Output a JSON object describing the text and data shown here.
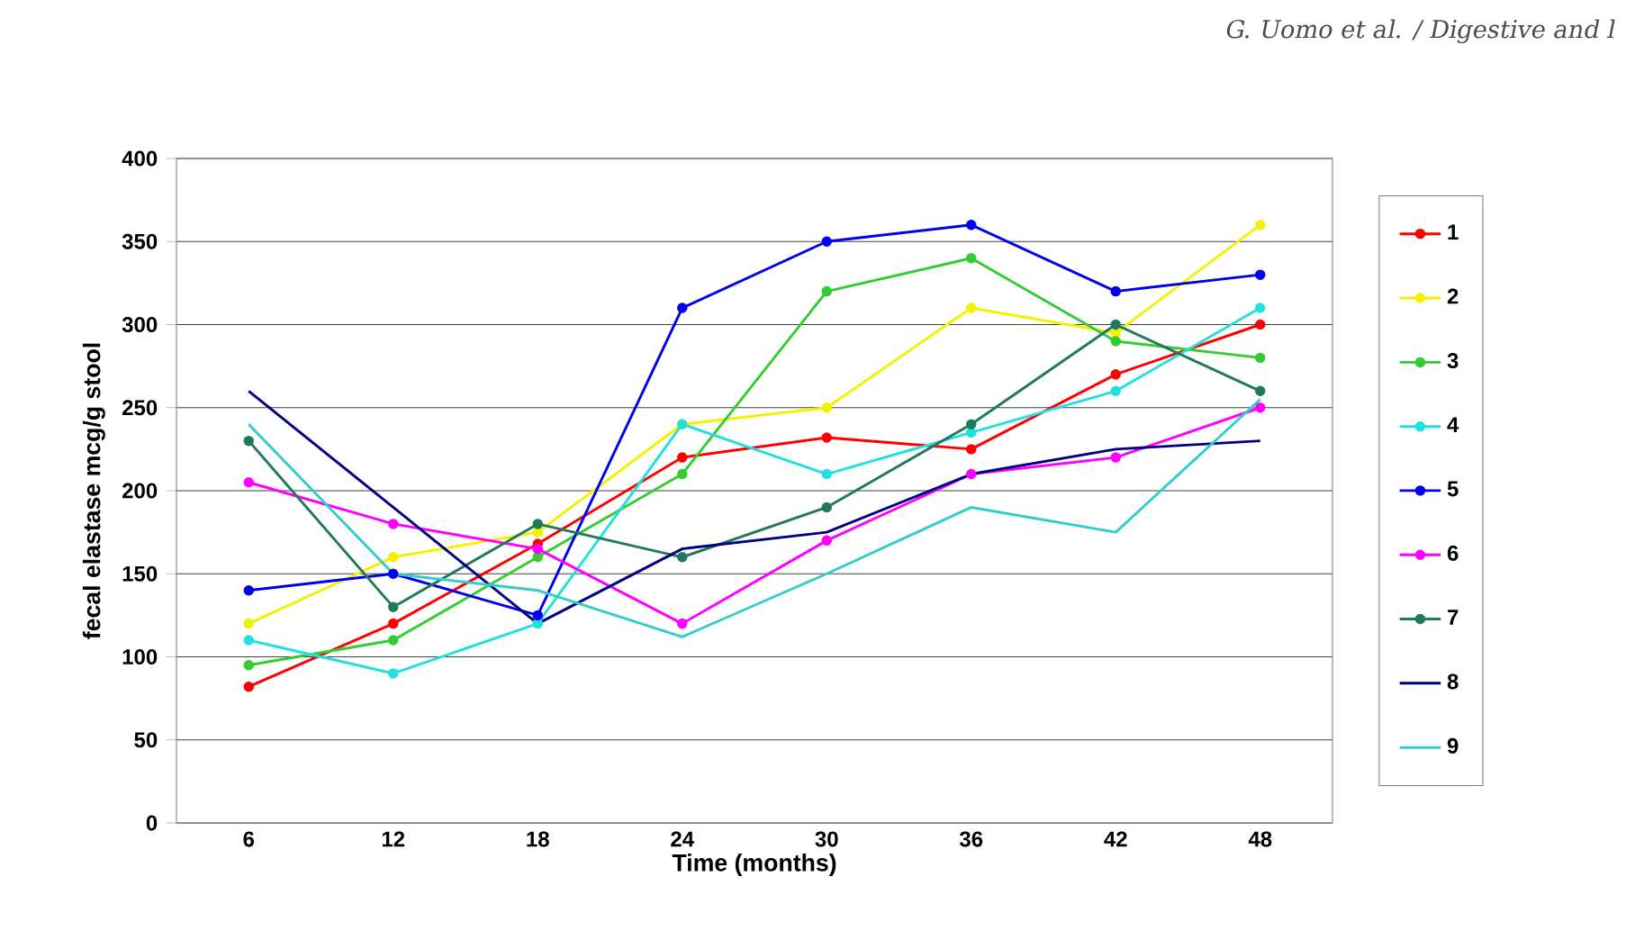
{
  "chart_data": {
    "type": "line",
    "xlabel": "Time (months)",
    "ylabel": "fecal elastase mcg/g stool",
    "annotations": [
      "G. Uomo et al. / Digestive and l"
    ],
    "categories": [
      "6",
      "12",
      "18",
      "24",
      "30",
      "36",
      "42",
      "48"
    ],
    "ylim": [
      0,
      400
    ],
    "yticks": [
      0,
      50,
      100,
      150,
      200,
      250,
      300,
      350,
      400
    ],
    "grid": "y",
    "legend": "right",
    "marker": "circle",
    "line_style": "solid",
    "series": [
      {
        "name": "1",
        "color": "#ff0000",
        "values": [
          82,
          120,
          168,
          220,
          232,
          225,
          270,
          300
        ]
      },
      {
        "name": "2",
        "color": "#f2f200",
        "values": [
          120,
          160,
          175,
          240,
          250,
          310,
          295,
          360
        ]
      },
      {
        "name": "3",
        "color": "#33cc33",
        "values": [
          95,
          110,
          160,
          210,
          320,
          340,
          290,
          280
        ]
      },
      {
        "name": "4",
        "color": "#22e0e0",
        "values": [
          110,
          90,
          120,
          240,
          210,
          235,
          260,
          310
        ]
      },
      {
        "name": "5",
        "color": "#0000ee",
        "values": [
          140,
          150,
          125,
          310,
          350,
          360,
          320,
          330
        ]
      },
      {
        "name": "6",
        "color": "#ff00ff",
        "values": [
          205,
          180,
          165,
          120,
          170,
          210,
          220,
          250
        ]
      },
      {
        "name": "7",
        "color": "#1f7a5c",
        "values": [
          230,
          130,
          180,
          160,
          190,
          240,
          300,
          260
        ]
      },
      {
        "name": "8",
        "color": "#000080",
        "marker": "none",
        "values": [
          260,
          190,
          120,
          165,
          175,
          210,
          225,
          230
        ]
      },
      {
        "name": "9",
        "color": "#33cccc",
        "marker": "none",
        "values": [
          240,
          150,
          140,
          112,
          150,
          190,
          175,
          255
        ]
      }
    ]
  }
}
